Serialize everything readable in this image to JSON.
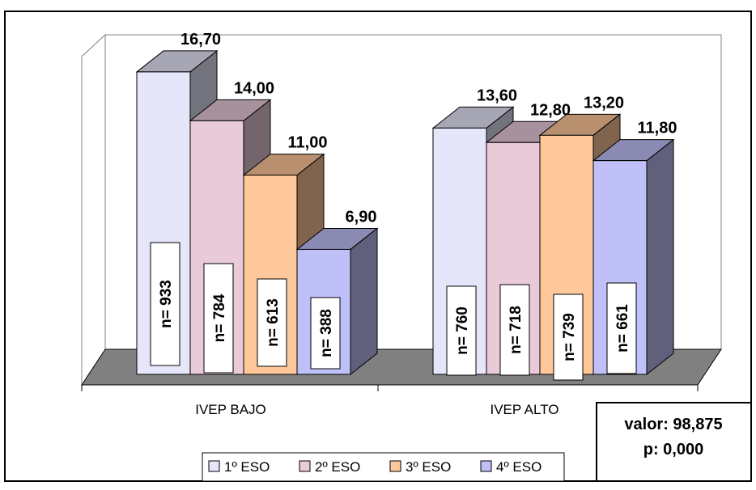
{
  "chart_data": {
    "type": "bar",
    "title": "",
    "xlabel": "",
    "ylabel": "",
    "categories": [
      "IVEP BAJO",
      "IVEP ALTO"
    ],
    "series": [
      {
        "name": "1º ESO",
        "values": [
          16.7,
          13.6
        ],
        "labels": [
          "16,70",
          "13,60"
        ],
        "n": [
          "n= 933",
          "n= 760"
        ],
        "color": "#e6e6fa"
      },
      {
        "name": "2º ESO",
        "values": [
          14.0,
          12.8
        ],
        "labels": [
          "14,00",
          "12,80"
        ],
        "n": [
          "n= 784",
          "n= 718"
        ],
        "color": "#e8cad8"
      },
      {
        "name": "3º ESO",
        "values": [
          11.0,
          13.2
        ],
        "labels": [
          "11,00",
          "13,20"
        ],
        "n": [
          "n= 613",
          "n= 739"
        ],
        "color": "#ffc89a"
      },
      {
        "name": "4º ESO",
        "values": [
          6.9,
          11.8
        ],
        "labels": [
          "6,90",
          "11,80"
        ],
        "n": [
          "n= 388",
          "n= 661"
        ],
        "color": "#c0c0f8"
      }
    ],
    "ylim": [
      0,
      18
    ],
    "grid": false,
    "legend_position": "bottom"
  },
  "stats": {
    "line1": "valor: 98,875",
    "line2": "p: 0,000"
  },
  "colors": {
    "floor": "#808080",
    "wall": "#ffffff",
    "border": "#000000"
  }
}
